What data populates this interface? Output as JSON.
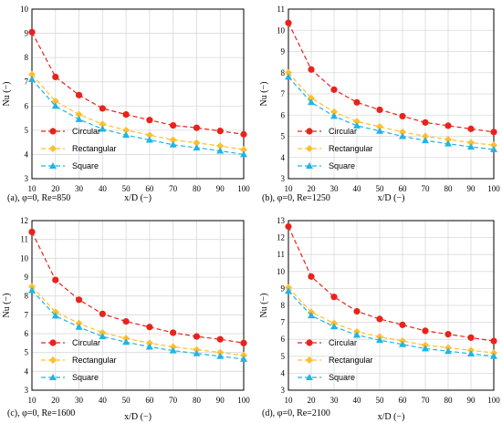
{
  "colors": {
    "circular": "#e8231c",
    "rectangular": "#fdbf2d",
    "square": "#1fb5e6",
    "axis": "#000000",
    "grid": "#d9d9d9"
  },
  "chart_data": [
    {
      "type": "line",
      "caption": "(a), φ=0, Re=850",
      "xlabel": "x/D (−)",
      "ylabel": "Nu (−)",
      "xlim": [
        10,
        100
      ],
      "ylim": [
        3,
        10
      ],
      "xticks": [
        10,
        20,
        30,
        40,
        50,
        60,
        70,
        80,
        90,
        100
      ],
      "yticks": [
        3,
        4,
        5,
        6,
        7,
        8,
        9,
        10
      ],
      "legend_position": "bottom-left",
      "x": [
        10,
        20,
        30,
        40,
        50,
        60,
        70,
        80,
        90,
        100
      ],
      "series": [
        {
          "name": "Circular",
          "values": [
            9.05,
            7.2,
            6.45,
            5.9,
            5.65,
            5.42,
            5.2,
            5.1,
            4.97,
            4.83
          ]
        },
        {
          "name": "Rectangular",
          "values": [
            7.3,
            6.2,
            5.65,
            5.25,
            5.0,
            4.8,
            4.6,
            4.48,
            4.35,
            4.2
          ]
        },
        {
          "name": "Square",
          "values": [
            7.1,
            6.0,
            5.45,
            5.05,
            4.8,
            4.6,
            4.4,
            4.28,
            4.15,
            4.0
          ]
        }
      ]
    },
    {
      "type": "line",
      "caption": "(b), φ=0, Re=1250",
      "xlabel": "x/D (−)",
      "ylabel": "Nu (−)",
      "xlim": [
        10,
        100
      ],
      "ylim": [
        3,
        11
      ],
      "xticks": [
        10,
        20,
        30,
        40,
        50,
        60,
        70,
        80,
        90,
        100
      ],
      "yticks": [
        3,
        4,
        5,
        6,
        7,
        8,
        9,
        10,
        11
      ],
      "legend_position": "bottom-left",
      "x": [
        10,
        20,
        30,
        40,
        50,
        60,
        70,
        80,
        90,
        100
      ],
      "series": [
        {
          "name": "Circular",
          "values": [
            10.35,
            8.15,
            7.2,
            6.6,
            6.25,
            5.95,
            5.65,
            5.5,
            5.35,
            5.2
          ]
        },
        {
          "name": "Rectangular",
          "values": [
            8.0,
            6.8,
            6.15,
            5.7,
            5.45,
            5.2,
            5.0,
            4.85,
            4.7,
            4.58
          ]
        },
        {
          "name": "Square",
          "values": [
            7.8,
            6.6,
            5.95,
            5.5,
            5.25,
            5.0,
            4.8,
            4.65,
            4.5,
            4.38
          ]
        }
      ]
    },
    {
      "type": "line",
      "caption": "(c), φ=0, Re=1600",
      "xlabel": "x/D (−)",
      "ylabel": "Nu (−)",
      "xlim": [
        10,
        100
      ],
      "ylim": [
        3,
        12
      ],
      "xticks": [
        10,
        20,
        30,
        40,
        50,
        60,
        70,
        80,
        90,
        100
      ],
      "yticks": [
        3,
        4,
        5,
        6,
        7,
        8,
        9,
        10,
        11,
        12
      ],
      "legend_position": "bottom-left",
      "x": [
        10,
        20,
        30,
        40,
        50,
        60,
        70,
        80,
        90,
        100
      ],
      "series": [
        {
          "name": "Circular",
          "values": [
            11.4,
            8.85,
            7.8,
            7.05,
            6.65,
            6.35,
            6.05,
            5.85,
            5.7,
            5.5
          ]
        },
        {
          "name": "Rectangular",
          "values": [
            8.5,
            7.15,
            6.55,
            6.05,
            5.75,
            5.5,
            5.3,
            5.15,
            5.0,
            4.85
          ]
        },
        {
          "name": "Square",
          "values": [
            8.3,
            6.95,
            6.35,
            5.85,
            5.55,
            5.3,
            5.1,
            4.95,
            4.8,
            4.65
          ]
        }
      ]
    },
    {
      "type": "line",
      "caption": "(d), φ=0, Re=2100",
      "xlabel": "x/D (−)",
      "ylabel": "Nu (−)",
      "xlim": [
        10,
        100
      ],
      "ylim": [
        3,
        13
      ],
      "xticks": [
        10,
        20,
        30,
        40,
        50,
        60,
        70,
        80,
        90,
        100
      ],
      "yticks": [
        3,
        4,
        5,
        6,
        7,
        8,
        9,
        10,
        11,
        12,
        13
      ],
      "legend_position": "bottom-left",
      "x": [
        10,
        20,
        30,
        40,
        50,
        60,
        70,
        80,
        90,
        100
      ],
      "series": [
        {
          "name": "Circular",
          "values": [
            12.65,
            9.7,
            8.5,
            7.65,
            7.2,
            6.85,
            6.5,
            6.3,
            6.1,
            5.9
          ]
        },
        {
          "name": "Rectangular",
          "values": [
            9.05,
            7.6,
            6.95,
            6.45,
            6.15,
            5.9,
            5.65,
            5.5,
            5.35,
            5.2
          ]
        },
        {
          "name": "Square",
          "values": [
            8.85,
            7.4,
            6.75,
            6.25,
            5.95,
            5.7,
            5.45,
            5.3,
            5.15,
            5.0
          ]
        }
      ]
    }
  ]
}
